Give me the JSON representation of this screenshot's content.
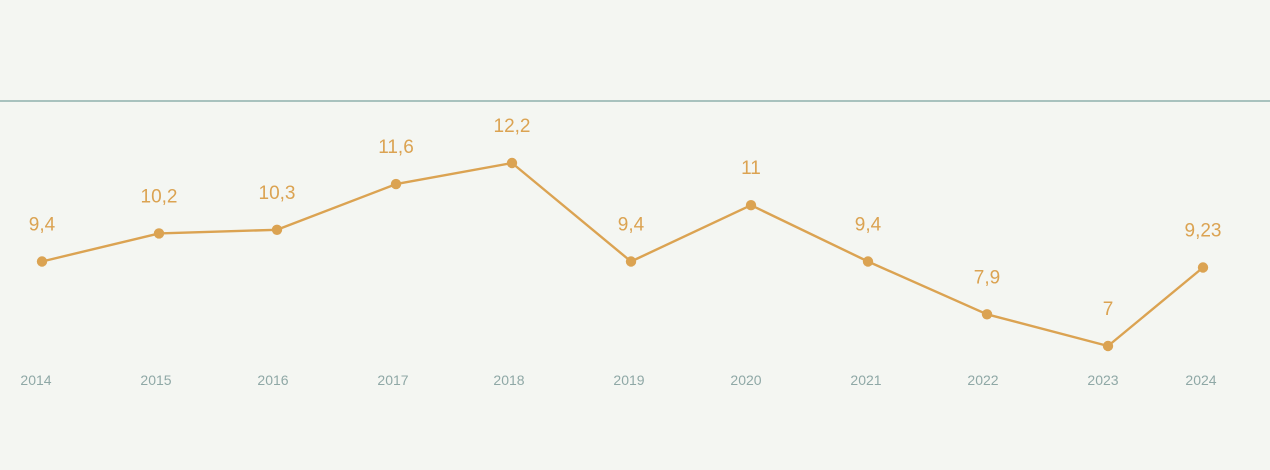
{
  "colors": {
    "background": "#f4f6f2",
    "line": "#dba352",
    "marker": "#dba352",
    "value_label": "#dba352",
    "tick_label": "#8fa8a6",
    "top_rule": "#8fb0ad"
  },
  "chart_data": {
    "type": "line",
    "title": "",
    "xlabel": "",
    "ylabel": "",
    "categories": [
      "2014",
      "2015",
      "2016",
      "2017",
      "2018",
      "2019",
      "2020",
      "2021",
      "2022",
      "2023",
      "2024"
    ],
    "series": [
      {
        "values": [
          9.4,
          10.2,
          10.3,
          11.6,
          12.2,
          9.4,
          11,
          9.4,
          7.9,
          7,
          9.23
        ],
        "data_labels": [
          "9,4",
          "10,2",
          "10,3",
          "11,6",
          "12,2",
          "9,4",
          "11",
          "9,4",
          "7,9",
          "7",
          "9,23"
        ]
      }
    ],
    "grid": false,
    "legend": "none",
    "markers": "circle"
  }
}
